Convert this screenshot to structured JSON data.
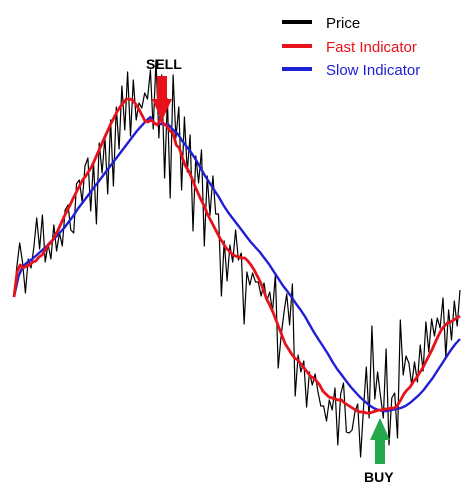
{
  "chart_data": {
    "type": "line",
    "title": "",
    "xlabel": "",
    "ylabel": "",
    "grid": false,
    "axes_visible": false,
    "legend_placement": "top-right",
    "series": [
      {
        "name": "Price",
        "color": "#000000",
        "values": [
          297,
          267,
          243,
          262,
          293,
          259,
          268,
          247,
          218,
          249,
          215,
          262,
          244,
          259,
          225,
          251,
          233,
          246,
          210,
          205,
          230,
          233,
          184,
          180,
          202,
          166,
          158,
          211,
          162,
          224,
          143,
          173,
          137,
          194,
          120,
          186,
          107,
          149,
          86,
          130,
          72,
          136,
          80,
          120,
          103,
          108,
          93,
          99,
          70,
          129,
          60,
          138,
          75,
          178,
          99,
          198,
          75,
          138,
          107,
          190,
          117,
          172,
          135,
          231,
          156,
          183,
          150,
          246,
          176,
          215,
          176,
          214,
          214,
          296,
          241,
          281,
          245,
          262,
          230,
          260,
          253,
          324,
          272,
          285,
          273,
          282,
          282,
          296,
          283,
          301,
          292,
          312,
          274,
          368,
          337,
          313,
          294,
          325,
          284,
          396,
          355,
          372,
          361,
          407,
          372,
          385,
          374,
          392,
          406,
          406,
          421,
          400,
          410,
          388,
          445,
          394,
          383,
          432,
          433,
          430,
          412,
          404,
          457,
          410,
          367,
          418,
          326,
          399,
          372,
          396,
          418,
          349,
          445,
          398,
          393,
          438,
          320,
          375,
          356,
          363,
          385,
          362,
          382,
          345,
          371,
          322,
          352,
          319,
          336,
          318,
          328,
          298,
          357,
          310,
          340,
          301,
          326,
          290
        ]
      },
      {
        "name": "Fast Indicator",
        "color": "#e8121a",
        "values": [
          297,
          272,
          265,
          268,
          266,
          265,
          262,
          261,
          257,
          255,
          250,
          245,
          242,
          237,
          231,
          224,
          217,
          211,
          205,
          198,
          192,
          186,
          180,
          176,
          171,
          166,
          159,
          152,
          145,
          138,
          131,
          124,
          118,
          112,
          107,
          103,
          99,
          99,
          100,
          104,
          109,
          115,
          121,
          122,
          120,
          123,
          125,
          119,
          124,
          126,
          131,
          133,
          145,
          148,
          158,
          166,
          171,
          178,
          186,
          193,
          200,
          206,
          214,
          220,
          226,
          232,
          238,
          243,
          248,
          251,
          254,
          256,
          257,
          258,
          258,
          261,
          265,
          270,
          276,
          282,
          290,
          299,
          305,
          312,
          320,
          328,
          336,
          344,
          349,
          354,
          358,
          360,
          364,
          368,
          372,
          376,
          378,
          381,
          385,
          391,
          394,
          397,
          398,
          399,
          400,
          400,
          403,
          405,
          407,
          409,
          411,
          412,
          412,
          413,
          413,
          412,
          411,
          410,
          410,
          409,
          409,
          408,
          408,
          405,
          400,
          394,
          390,
          387,
          382,
          378,
          373,
          368,
          362,
          356,
          350,
          343,
          336,
          330,
          326,
          323,
          322,
          320,
          318,
          316
        ]
      },
      {
        "name": "Slow Indicator",
        "color": "#1f1fd6",
        "values": [
          297,
          276,
          266,
          262,
          259,
          255,
          251,
          247,
          242,
          238,
          233,
          228,
          222,
          216,
          209,
          203,
          197,
          191,
          185,
          179,
          173,
          167,
          161,
          155,
          149,
          143,
          137,
          131,
          126,
          121,
          117,
          124,
          124,
          124,
          125,
          130,
          134,
          141,
          147,
          153,
          160,
          168,
          176,
          183,
          190,
          197,
          205,
          212,
          218,
          224,
          230,
          236,
          242,
          247,
          252,
          258,
          264,
          271,
          278,
          285,
          291,
          297,
          304,
          310,
          317,
          325,
          333,
          340,
          347,
          354,
          362,
          369,
          375,
          381,
          387,
          392,
          397,
          401,
          405,
          408,
          410,
          411,
          411,
          410,
          409,
          408,
          406,
          403,
          399,
          395,
          390,
          384,
          378,
          371,
          364,
          357,
          350,
          344,
          339
        ]
      }
    ],
    "signals": [
      {
        "label": "SELL",
        "color": "#e8121a",
        "points_to": "peak"
      },
      {
        "label": "BUY",
        "color": "#23a84b",
        "points_to": "trough"
      }
    ]
  }
}
